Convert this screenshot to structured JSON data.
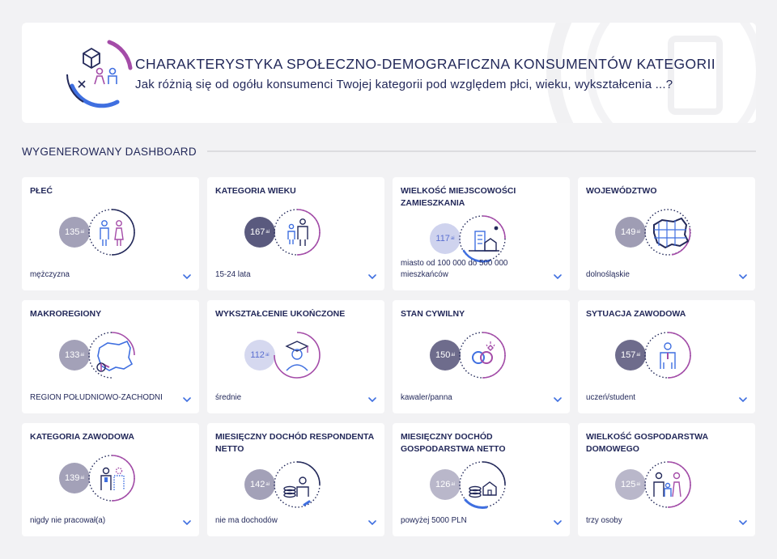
{
  "header": {
    "title": "CHARAKTERYSTYKA SPOŁECZNO-DEMOGRAFICZNA KONSUMENTÓW KATEGORII",
    "subtitle": "Jak różnią się od ogółu konsumenci Twojej kategorii pod względem płci, wieku, wykształcenia ...?"
  },
  "section": {
    "title": "WYGENEROWANY DASHBOARD"
  },
  "index_suffix": "ai",
  "cards": [
    {
      "title": "PŁEĆ",
      "index": "135",
      "value": "mężczyzna",
      "icon": "gender-icon",
      "badge_color": "#a3a1b8"
    },
    {
      "title": "KATEGORIA WIEKU",
      "index": "167",
      "value": "15-24 lata",
      "icon": "age-group-icon",
      "badge_color": "#5a5a7e"
    },
    {
      "title": "WIELKOŚĆ MIEJSCOWOŚCI ZAMIESZKANIA",
      "index": "117",
      "value": "miasto od 100 000 do 500 000 mieszkańców",
      "icon": "city-buildings-icon",
      "badge_color": "#cfd3ee"
    },
    {
      "title": "WOJEWÓDZTWO",
      "index": "149",
      "value": "dolnośląskie",
      "icon": "voivodeship-map-icon",
      "badge_color": "#9f9db4"
    },
    {
      "title": "MAKROREGIONY",
      "index": "133",
      "value": "REGION POŁUDNIOWO-ZACHODNI",
      "icon": "poland-map-icon",
      "badge_color": "#a3a1b8"
    },
    {
      "title": "WYKSZTAŁCENIE UKOŃCZONE",
      "index": "112",
      "value": "średnie",
      "icon": "graduate-icon",
      "badge_color": "#d5d8ef"
    },
    {
      "title": "STAN CYWILNY",
      "index": "150",
      "value": "kawaler/panna",
      "icon": "rings-icon",
      "badge_color": "#6e6c8c"
    },
    {
      "title": "SYTUACJA ZAWODOWA",
      "index": "157",
      "value": "uczeń/student",
      "icon": "student-icon",
      "badge_color": "#6e6c8c"
    },
    {
      "title": "KATEGORIA ZAWODOWA",
      "index": "139",
      "value": "nigdy nie pracował(a)",
      "icon": "profession-icon",
      "badge_color": "#a3a1b8"
    },
    {
      "title": "MIESIĘCZNY DOCHÓD RESPONDENTA NETTO",
      "index": "142",
      "value": "nie ma dochodów",
      "icon": "income-coins-icon",
      "badge_color": "#a3a1b8"
    },
    {
      "title": "MIESIĘCZNY DOCHÓD GOSPODARSTWA NETTO",
      "index": "126",
      "value": "powyżej 5000 PLN",
      "icon": "household-income-icon",
      "badge_color": "#b9b7ca"
    },
    {
      "title": "WIELKOŚĆ GOSPODARSTWA DOMOWEGO",
      "index": "125",
      "value": "trzy osoby",
      "icon": "family-icon",
      "badge_color": "#b9b7ca"
    }
  ],
  "colors": {
    "navy": "#23295a",
    "purple": "#a44ca8",
    "blue": "#3f6fe0",
    "chevron": "#3f6fe0"
  }
}
